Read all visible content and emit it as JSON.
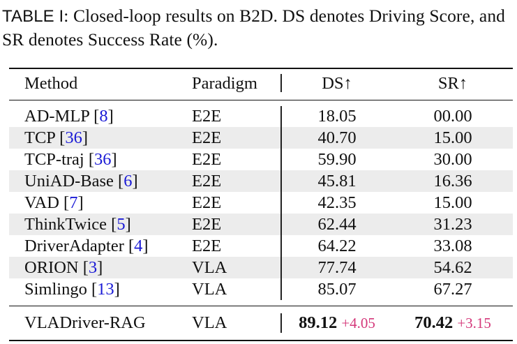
{
  "caption": {
    "label": "TABLE I",
    "text": ": Closed-loop results on B2D. DS denotes Driving Score, and SR denotes Success Rate (%)."
  },
  "header": {
    "method": "Method",
    "paradigm": "Paradigm",
    "ds": "DS↑",
    "sr": "SR↑"
  },
  "rows": [
    {
      "method": "AD-MLP",
      "cite": "8",
      "paradigm": "E2E",
      "ds": "18.05",
      "sr": "00.00"
    },
    {
      "method": "TCP",
      "cite": "36",
      "paradigm": "E2E",
      "ds": "40.70",
      "sr": "15.00"
    },
    {
      "method": "TCP-traj",
      "cite": "36",
      "paradigm": "E2E",
      "ds": "59.90",
      "sr": "30.00"
    },
    {
      "method": "UniAD-Base",
      "cite": "6",
      "paradigm": "E2E",
      "ds": "45.81",
      "sr": "16.36"
    },
    {
      "method": "VAD",
      "cite": "7",
      "paradigm": "E2E",
      "ds": "42.35",
      "sr": "15.00"
    },
    {
      "method": "ThinkTwice",
      "cite": "5",
      "paradigm": "E2E",
      "ds": "62.44",
      "sr": "31.23"
    },
    {
      "method": "DriverAdapter",
      "cite": "4",
      "paradigm": "E2E",
      "ds": "64.22",
      "sr": "33.08"
    },
    {
      "method": "ORION",
      "cite": "3",
      "paradigm": "VLA",
      "ds": "77.74",
      "sr": "54.62"
    },
    {
      "method": "Simlingo",
      "cite": "13",
      "paradigm": "VLA",
      "ds": "85.07",
      "sr": "67.27"
    }
  ],
  "ours": {
    "method": "VLADriver-RAG",
    "paradigm": "VLA",
    "ds": "89.12",
    "ds_delta": "+4.05",
    "sr": "70.42",
    "sr_delta": "+3.15"
  },
  "colors": {
    "citation": "#1a1ad6",
    "delta": "#d4387a",
    "row_shade": "#ececec"
  }
}
